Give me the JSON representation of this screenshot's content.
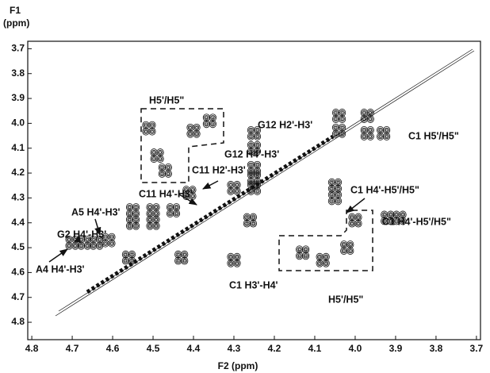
{
  "chart_data": {
    "type": "contour",
    "xlabel": "F2 (ppm)",
    "ylabel": [
      "F1",
      "(ppm)"
    ],
    "xlim": [
      4.81,
      3.69
    ],
    "ylim": [
      3.67,
      4.87
    ],
    "xticks": [
      4.8,
      4.7,
      4.6,
      4.5,
      4.4,
      4.3,
      4.2,
      4.1,
      {
        "value": 4,
        "label": "4.0"
      },
      3.9,
      3.8,
      3.7
    ],
    "yticks": [
      3.7,
      3.8,
      3.9,
      {
        "value": 4,
        "label": "4.0"
      },
      4.1,
      4.2,
      4.3,
      4.4,
      4.5,
      4.6,
      4.7,
      4.8
    ],
    "color": "#111111",
    "x": [
      4.51,
      4.49,
      4.47,
      4.4,
      4.36,
      4.04,
      3.97,
      4.04,
      3.97,
      3.93,
      4.25,
      4.25,
      4.25,
      4.25,
      4.25,
      4.3,
      4.3,
      4.55,
      4.5,
      4.55,
      4.5,
      4.45,
      4.05,
      4.05,
      4.56,
      4.43,
      4.26,
      4.7,
      4.67,
      4.64,
      4.61,
      4.13,
      4.08,
      4.02,
      4.0,
      3.92,
      3.89,
      4.41
    ],
    "y": [
      4.02,
      4.13,
      4.19,
      4.03,
      3.99,
      3.97,
      3.97,
      4.03,
      4.04,
      4.04,
      4.04,
      4.1,
      4.18,
      4.22,
      4.26,
      4.26,
      4.55,
      4.35,
      4.35,
      4.4,
      4.4,
      4.35,
      4.25,
      4.3,
      4.54,
      4.54,
      4.39,
      4.48,
      4.48,
      4.48,
      4.47,
      4.52,
      4.55,
      4.5,
      4.39,
      4.38,
      4.38,
      4.28
    ],
    "annotations": [
      "H5'/H5\"",
      "G12 H2'-H3'",
      "C1 H5'/H5\"",
      "G12 H4'-H3'",
      "C11 H2'-H3'",
      "C11 H4'-H3'",
      "C1 H4'-H5'/H5\"",
      "C1 H4'-H5'/H5\"",
      "A5 H4'-H3'",
      "G2 H4'-H3'",
      "A4 H4'-H3'",
      "C1 H3'-H4'",
      "H5'/H5\""
    ]
  }
}
